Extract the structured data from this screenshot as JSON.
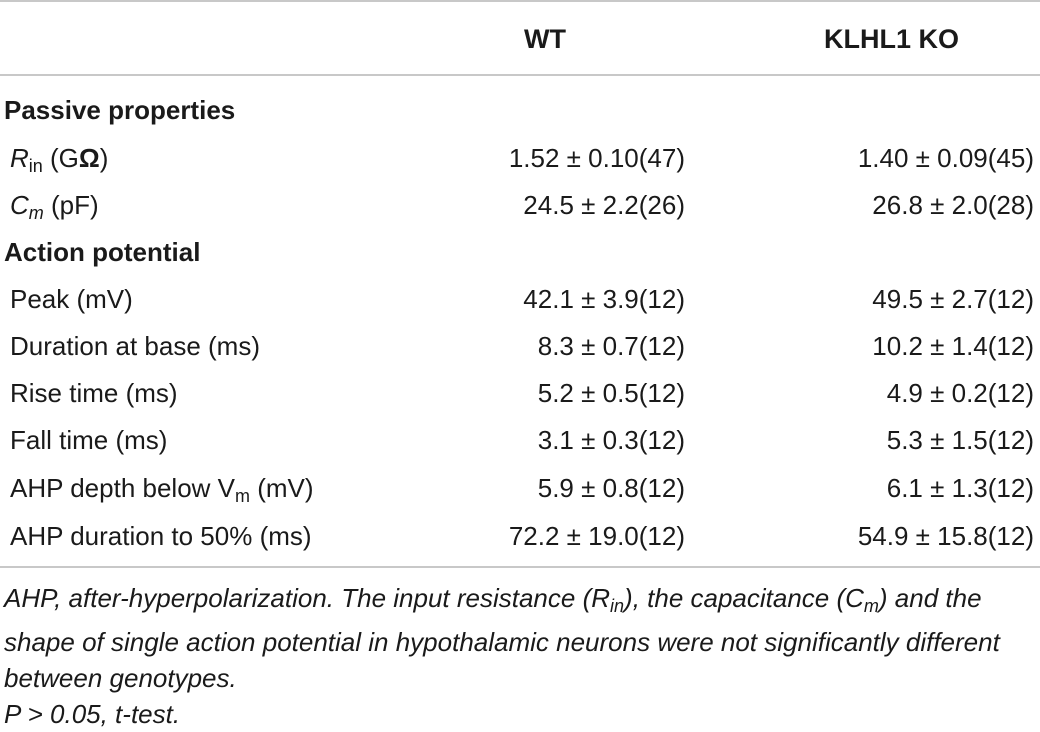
{
  "table": {
    "columns": {
      "label": "",
      "wt": "WT",
      "ko": "KLHL1 KO"
    },
    "sections": [
      {
        "title": "Passive properties",
        "rows": [
          {
            "label_main": "R",
            "label_sub": "in",
            "label_unit": " (G",
            "label_unit_bold": "Ω",
            "label_end": ")",
            "wt": "1.52 ± 0.10(47)",
            "ko": "1.40 ± 0.09(45)"
          },
          {
            "label_main": "C",
            "label_sub": "m",
            "label_unit": " (pF)",
            "wt": "24.5 ± 2.2(26)",
            "ko": "26.8 ± 2.0(28)"
          }
        ]
      },
      {
        "title": "Action potential",
        "rows": [
          {
            "label": "Peak (mV)",
            "wt": "42.1 ± 3.9(12)",
            "ko": "49.5 ± 2.7(12)"
          },
          {
            "label": "Duration at base (ms)",
            "wt": "8.3 ± 0.7(12)",
            "ko": "10.2 ± 1.4(12)"
          },
          {
            "label": "Rise time (ms)",
            "wt": "5.2 ± 0.5(12)",
            "ko": "4.9 ± 0.2(12)"
          },
          {
            "label": "Fall time (ms)",
            "wt": "3.1 ± 0.3(12)",
            "ko": "5.3 ± 1.5(12)"
          },
          {
            "label_pre": "AHP depth below V",
            "label_sub": "m",
            "label_post": " (mV)",
            "wt": "5.9 ± 0.8(12)",
            "ko": "6.1 ± 1.3(12)"
          },
          {
            "label": "AHP duration to 50% (ms)",
            "wt": "72.2 ± 19.0(12)",
            "ko": "54.9 ± 15.8(12)"
          }
        ]
      }
    ]
  },
  "footnote": {
    "line1_a": "AHP, after-hyperpolarization. The input resistance (R",
    "line1_sub1": "in",
    "line1_b": "), the capacitance (C",
    "line1_sub2": "m",
    "line1_c": ") and the shape of single action potential in hypothalamic neurons were not significantly different between genotypes.",
    "line2": "P > 0.05, t-test."
  }
}
